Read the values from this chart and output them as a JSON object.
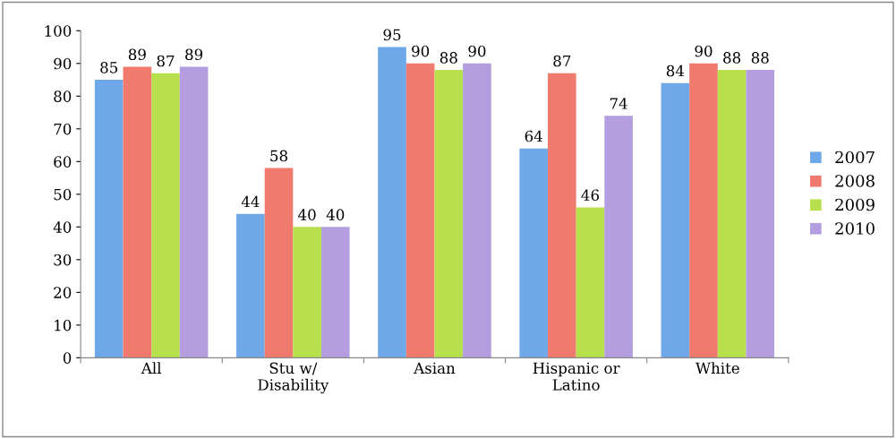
{
  "chart_data": {
    "type": "bar",
    "categories": [
      "All",
      "Stu w/\nDisability",
      "Asian",
      "Hispanic or\nLatino",
      "White"
    ],
    "series": [
      {
        "name": "2007",
        "color": "#6fa8e8",
        "values": [
          85,
          44,
          95,
          64,
          84
        ]
      },
      {
        "name": "2008",
        "color": "#f07a6e",
        "values": [
          89,
          58,
          90,
          87,
          90
        ]
      },
      {
        "name": "2009",
        "color": "#b8e04c",
        "values": [
          87,
          40,
          88,
          46,
          88
        ]
      },
      {
        "name": "2010",
        "color": "#b49ee0",
        "values": [
          89,
          40,
          90,
          74,
          88
        ]
      }
    ],
    "ylim": [
      0,
      100
    ],
    "yticks": [
      0,
      10,
      20,
      30,
      40,
      50,
      60,
      70,
      80,
      90,
      100
    ],
    "grid": false,
    "legend": "right",
    "data_labels": true
  }
}
